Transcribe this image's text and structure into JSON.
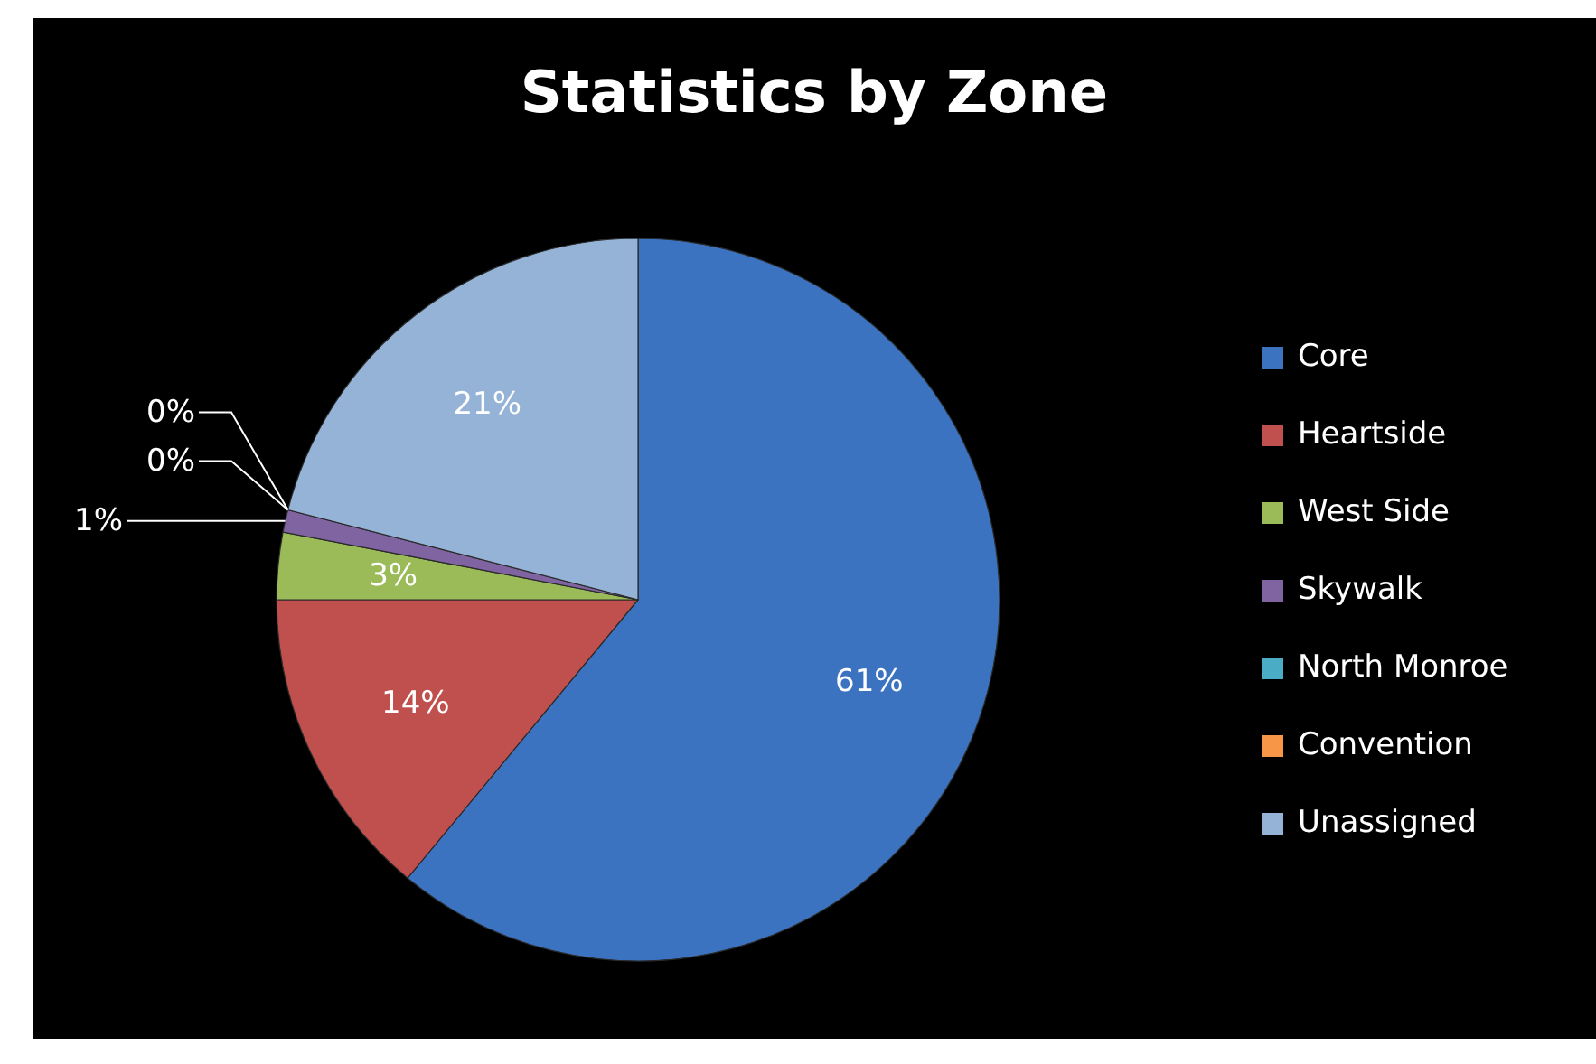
{
  "chart_data": {
    "type": "pie",
    "title": "Statistics by Zone",
    "categories": [
      "Core",
      "Heartside",
      "West Side",
      "Skywalk",
      "North Monroe",
      "Convention",
      "Unassigned"
    ],
    "values": [
      61,
      14,
      3,
      1,
      0,
      0,
      21
    ],
    "colors": [
      "#3b73c1",
      "#c0504d",
      "#9bbb59",
      "#8064a2",
      "#4bacc6",
      "#f79646",
      "#95b3d7"
    ],
    "value_labels": [
      "61%",
      "14%",
      "3%",
      "1%",
      "0%",
      "0%",
      "21%"
    ],
    "legend": "right"
  }
}
